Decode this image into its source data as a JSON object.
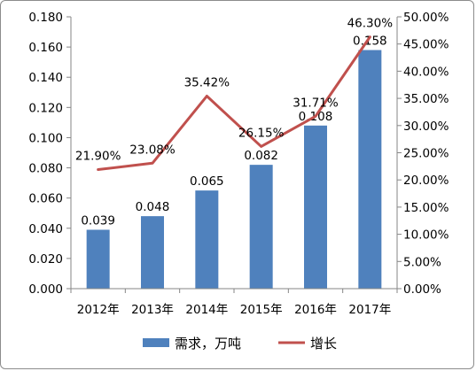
{
  "chart_data": {
    "type": "bar",
    "categories": [
      "2012年",
      "2013年",
      "2014年",
      "2015年",
      "2016年",
      "2017年"
    ],
    "series": [
      {
        "name": "需求，万吨",
        "type": "bar",
        "axis": "left",
        "values": [
          0.039,
          0.048,
          0.065,
          0.082,
          0.108,
          0.158
        ],
        "labels": [
          "0.039",
          "0.048",
          "0.065",
          "0.082",
          "0.108",
          "0.158"
        ],
        "color": "#4f81bd"
      },
      {
        "name": "增长",
        "type": "line",
        "axis": "right",
        "values": [
          21.9,
          23.08,
          35.42,
          26.15,
          31.71,
          46.3
        ],
        "labels": [
          "21.90%",
          "23.08%",
          "35.42%",
          "26.15%",
          "31.71%",
          "46.30%"
        ],
        "color": "#c0504d"
      }
    ],
    "y_left": {
      "ylim": [
        0,
        0.18
      ],
      "ticks": [
        "0.000",
        "0.020",
        "0.040",
        "0.060",
        "0.080",
        "0.100",
        "0.120",
        "0.140",
        "0.160",
        "0.180"
      ]
    },
    "y_right": {
      "ylim": [
        0,
        50
      ],
      "ticks": [
        "0.00%",
        "5.00%",
        "10.00%",
        "15.00%",
        "20.00%",
        "25.00%",
        "30.00%",
        "35.00%",
        "40.00%",
        "45.00%",
        "50.00%"
      ]
    },
    "grid": false,
    "legend_position": "bottom"
  }
}
